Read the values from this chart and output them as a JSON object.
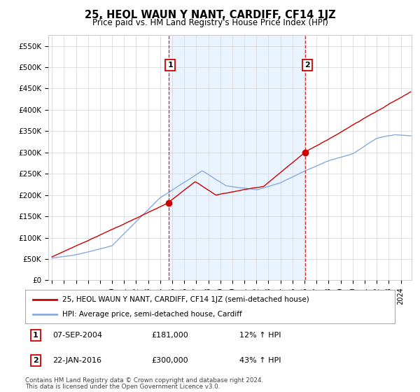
{
  "title": "25, HEOL WAUN Y NANT, CARDIFF, CF14 1JZ",
  "subtitle": "Price paid vs. HM Land Registry's House Price Index (HPI)",
  "legend_line1": "25, HEOL WAUN Y NANT, CARDIFF, CF14 1JZ (semi-detached house)",
  "legend_line2": "HPI: Average price, semi-detached house, Cardiff",
  "annotation1_date": "07-SEP-2004",
  "annotation1_price": "£181,000",
  "annotation1_hpi": "12% ↑ HPI",
  "annotation2_date": "22-JAN-2016",
  "annotation2_price": "£300,000",
  "annotation2_hpi": "43% ↑ HPI",
  "footnote1": "Contains HM Land Registry data © Crown copyright and database right 2024.",
  "footnote2": "This data is licensed under the Open Government Licence v3.0.",
  "price_color": "#cc0000",
  "hpi_color": "#88aadd",
  "vline_color": "#cc0000",
  "shade_color": "#ddeeff",
  "ylim": [
    0,
    575000
  ],
  "yticks": [
    0,
    50000,
    100000,
    150000,
    200000,
    250000,
    300000,
    350000,
    400000,
    450000,
    500000,
    550000
  ],
  "ytick_labels": [
    "£0",
    "£50K",
    "£100K",
    "£150K",
    "£200K",
    "£250K",
    "£300K",
    "£350K",
    "£400K",
    "£450K",
    "£500K",
    "£550K"
  ],
  "sale1_date_num": 2004.68,
  "sale1_price": 181000,
  "sale2_date_num": 2016.06,
  "sale2_price": 300000,
  "background_color": "#ffffff",
  "grid_color": "#cccccc"
}
